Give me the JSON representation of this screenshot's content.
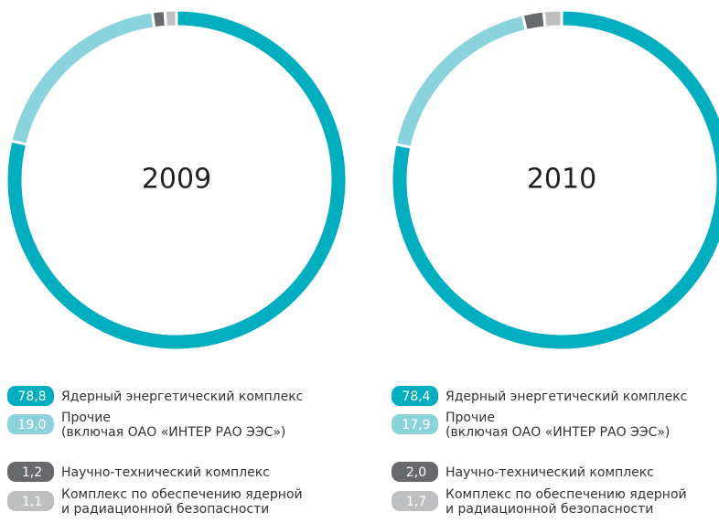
{
  "chart_data": [
    {
      "type": "donut",
      "title": "2009",
      "categories": [
        "Ядерный энергетический комплекс",
        "Прочие\n(включая ОАО «ИНТЕР РАО ЭЭС»)",
        "Научно-технический комплекс",
        "Комплекс по обеспечению ядерной\nи радиационной безопасности"
      ],
      "values": [
        78.8,
        19.0,
        1.2,
        1.1
      ],
      "value_labels": [
        "78,8",
        "19,0",
        "1,2",
        "1,1"
      ],
      "colors": [
        "#00aec0",
        "#8ad2dc",
        "#67696c",
        "#bdbfc1"
      ]
    },
    {
      "type": "donut",
      "title": "2010",
      "categories": [
        "Ядерный энергетический комплекс",
        "Прочие\n(включая ОАО «ИНТЕР РАО ЭЭС»)",
        "Научно-технический комплекс",
        "Комплекс по обеспечению ядерной\nи радиационной безопасности"
      ],
      "values": [
        78.4,
        17.9,
        2.0,
        1.7
      ],
      "value_labels": [
        "78,4",
        "17,9",
        "2,0",
        "1,7"
      ],
      "colors": [
        "#00aec0",
        "#8ad2dc",
        "#67696c",
        "#bdbfc1"
      ]
    }
  ]
}
